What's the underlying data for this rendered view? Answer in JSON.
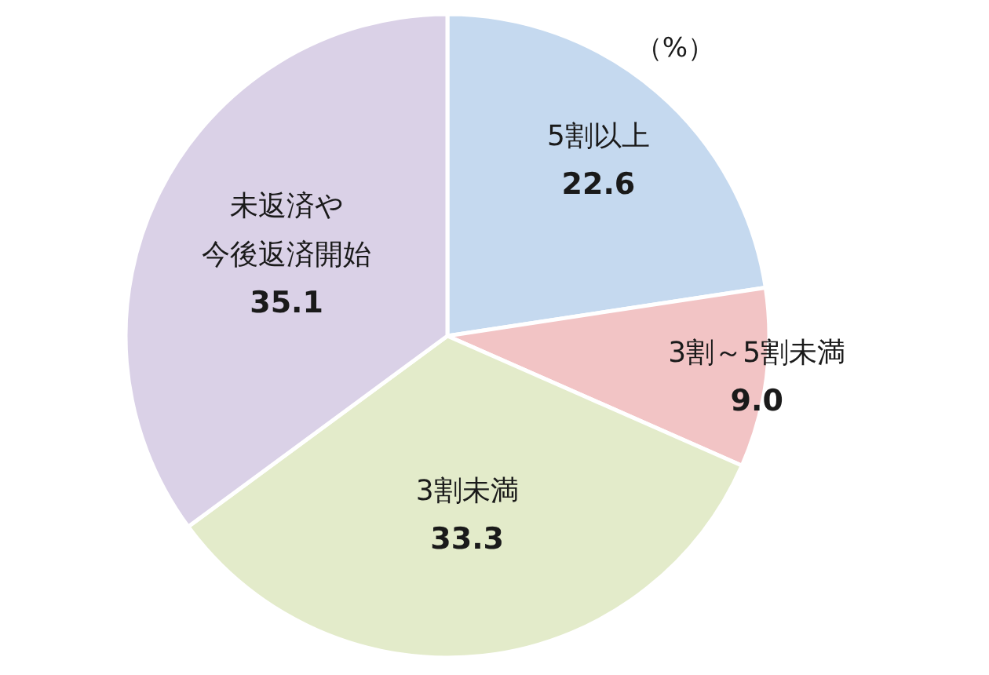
{
  "chart_data": {
    "type": "pie",
    "categories": [
      "5割以上",
      "3割～5割未満",
      "3割未満",
      "未返済や今後返済開始"
    ],
    "values": [
      22.6,
      9.0,
      33.3,
      35.1
    ],
    "colors": [
      "#c5d9ef",
      "#f2c4c5",
      "#e3ebca",
      "#dad1e7"
    ],
    "value_labels": [
      "22.6",
      "9.0",
      "33.3",
      "35.1"
    ],
    "annotations": [
      "（%）"
    ]
  }
}
